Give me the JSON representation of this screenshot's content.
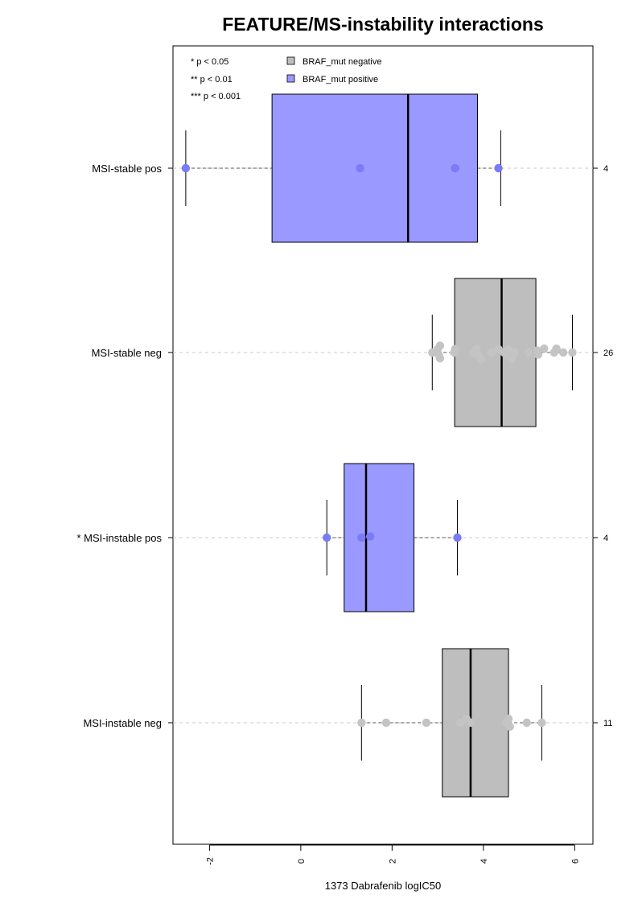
{
  "chart_data": {
    "type": "boxplot",
    "title": "FEATURE/MS-instability interactions",
    "xlabel": "1373 Dabrafenib logIC50",
    "xlim": [
      -2.8,
      6.4
    ],
    "x_ticks": [
      -2,
      0,
      2,
      4,
      6
    ],
    "grid": "horizontal dashed lines at each group",
    "legend": {
      "placement": "top-left",
      "significance": [
        "* p < 0.05",
        "** p < 0.01",
        "*** p < 0.001"
      ],
      "groups": [
        {
          "label": "BRAF_mut negative",
          "color": "#bebebe"
        },
        {
          "label": "BRAF_mut positive",
          "color": "#9999ff"
        }
      ]
    },
    "colors": {
      "positive_box": "#9999ff",
      "negative_box": "#bebebe",
      "positive_points": "#7b7bf5",
      "negative_points": "#c4c4c4"
    },
    "groups": [
      {
        "label": "MSI-stable pos",
        "count": "4",
        "braf": "positive",
        "whisker_low": -2.52,
        "q1": -0.63,
        "median": 2.35,
        "q3": 3.87,
        "whisker_high": 4.38,
        "points": [
          [
            -2.52,
            0
          ],
          [
            1.3,
            0
          ],
          [
            3.38,
            0
          ],
          [
            4.33,
            0
          ]
        ]
      },
      {
        "label": "MSI-stable neg",
        "count": "26",
        "braf": "negative",
        "whisker_low": 2.88,
        "q1": 3.37,
        "median": 4.4,
        "q3": 5.15,
        "whisker_high": 5.95,
        "points": [
          [
            2.88,
            0
          ],
          [
            3.05,
            0.7
          ],
          [
            3.0,
            0.35
          ],
          [
            3.02,
            -0.2
          ],
          [
            3.05,
            -0.6
          ],
          [
            3.36,
            0
          ],
          [
            3.38,
            0.35
          ],
          [
            3.78,
            0
          ],
          [
            3.85,
            0.35
          ],
          [
            3.9,
            -0.35
          ],
          [
            3.95,
            -0.7
          ],
          [
            4.18,
            0
          ],
          [
            4.33,
            0.35
          ],
          [
            4.45,
            0
          ],
          [
            4.55,
            0.3
          ],
          [
            4.52,
            -0.35
          ],
          [
            4.62,
            -0.7
          ],
          [
            4.68,
            0
          ],
          [
            4.98,
            0
          ],
          [
            5.18,
            0.2
          ],
          [
            5.2,
            -0.2
          ],
          [
            5.33,
            0.4
          ],
          [
            5.55,
            0
          ],
          [
            5.6,
            0.4
          ],
          [
            5.75,
            0
          ],
          [
            5.95,
            0
          ]
        ]
      },
      {
        "label": "* MSI-instable pos",
        "count": "4",
        "braf": "positive",
        "whisker_low": 0.57,
        "q1": 0.95,
        "median": 1.43,
        "q3": 2.48,
        "whisker_high": 3.43,
        "points": [
          [
            0.57,
            0
          ],
          [
            1.33,
            0
          ],
          [
            1.52,
            0.12
          ],
          [
            3.43,
            0
          ]
        ]
      },
      {
        "label": "MSI-instable neg",
        "count": "11",
        "braf": "negative",
        "whisker_low": 1.33,
        "q1": 3.1,
        "median": 3.72,
        "q3": 4.55,
        "whisker_high": 5.28,
        "points": [
          [
            1.33,
            0
          ],
          [
            1.87,
            0
          ],
          [
            2.75,
            0
          ],
          [
            3.5,
            0
          ],
          [
            3.63,
            0.4
          ],
          [
            3.72,
            0
          ],
          [
            4.5,
            0
          ],
          [
            4.55,
            0.4
          ],
          [
            4.58,
            -0.4
          ],
          [
            4.95,
            0
          ],
          [
            5.28,
            0
          ]
        ]
      }
    ]
  }
}
